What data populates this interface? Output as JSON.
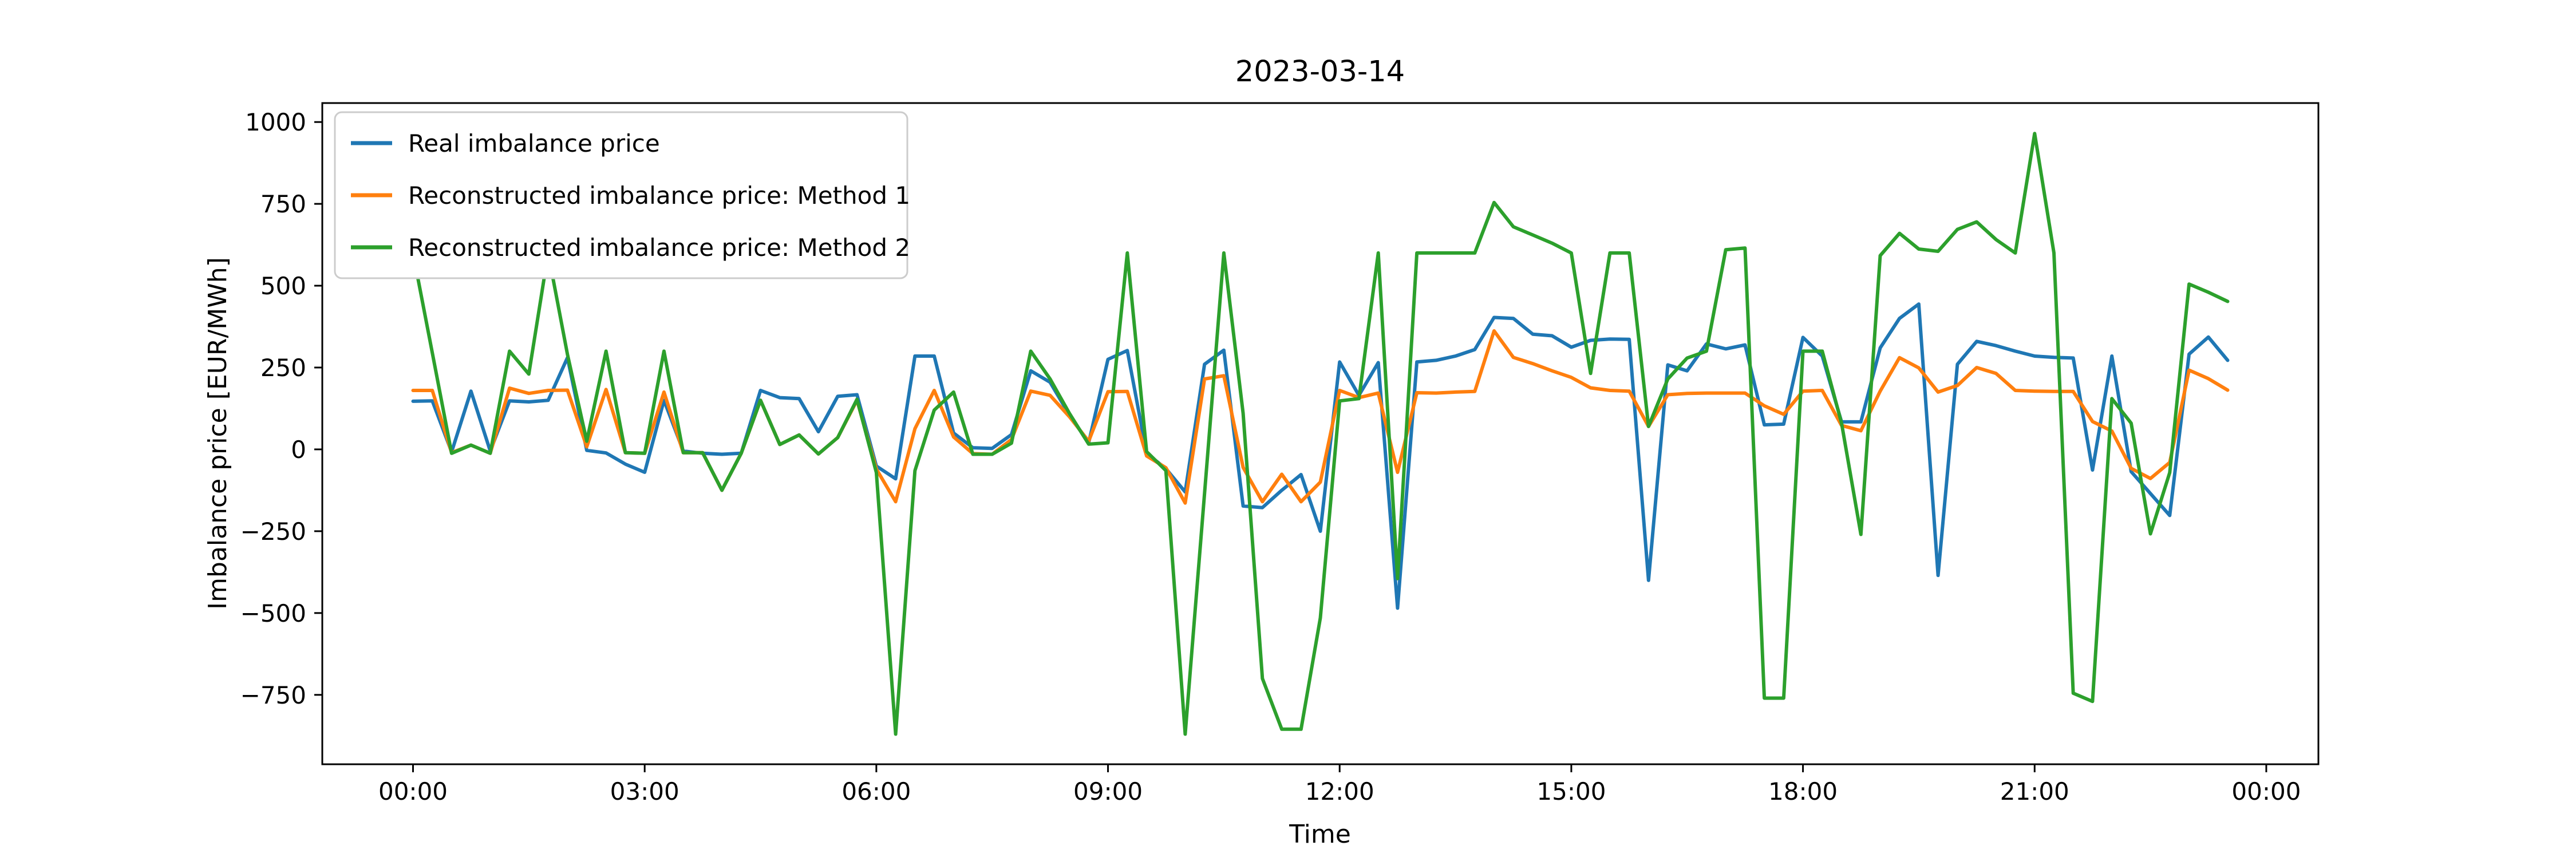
{
  "title": "2023-03-14",
  "xlabel": "Time",
  "ylabel": "Imbalance price [EUR/MWh]",
  "chart_data": {
    "type": "line",
    "x_start": "00:00",
    "x_step_minutes": 15,
    "x_tick_hours": [
      0,
      3,
      6,
      9,
      12,
      15,
      18,
      21,
      24
    ],
    "x_tick_labels": [
      "00:00",
      "03:00",
      "06:00",
      "09:00",
      "12:00",
      "15:00",
      "18:00",
      "21:00",
      "00:00"
    ],
    "y_ticks": [
      1000,
      750,
      500,
      250,
      0,
      -250,
      -500,
      -750
    ],
    "y_tick_labels": [
      "1000",
      "750",
      "500",
      "250",
      "0",
      "−250",
      "−500",
      "−750"
    ],
    "xlim_hours": [
      -1.175,
      24.675
    ],
    "ylim": [
      -962,
      1058
    ],
    "grid": false,
    "legend_position": "upper left",
    "background": "#ffffff",
    "spine_color": "#000000",
    "series": [
      {
        "name": "Real imbalance price",
        "color": "#1f77b4",
        "values": [
          147,
          148,
          -8,
          178,
          -5,
          148,
          145,
          150,
          280,
          -3,
          -11,
          -45,
          -70,
          150,
          -5,
          -12,
          -15,
          -12,
          180,
          158,
          155,
          54,
          162,
          167,
          -51,
          -90,
          285,
          285,
          50,
          5,
          3,
          45,
          240,
          205,
          105,
          20,
          275,
          302,
          -12,
          -59,
          -130,
          260,
          303,
          -173,
          -178,
          -125,
          -77,
          -250,
          267,
          165,
          265,
          -485,
          267,
          272,
          285,
          305,
          403,
          400,
          352,
          347,
          312,
          333,
          337,
          336,
          -400,
          258,
          240,
          322,
          307,
          319,
          75,
          77,
          342,
          285,
          84,
          84,
          310,
          400,
          444,
          -385,
          260,
          330,
          317,
          300,
          285,
          281,
          279,
          -63,
          285,
          -68,
          -135,
          -202,
          291,
          343,
          272
        ]
      },
      {
        "name": "Reconstructed imbalance price: Method 1",
        "color": "#ff7f0e",
        "values": [
          180,
          180,
          -10,
          13,
          -12,
          187,
          171,
          180,
          181,
          8,
          183,
          -10,
          -12,
          175,
          -10,
          -10,
          -125,
          -12,
          150,
          15,
          44,
          -14,
          36,
          150,
          -60,
          -160,
          63,
          180,
          38,
          -13,
          -15,
          30,
          178,
          165,
          100,
          25,
          176,
          177,
          -20,
          -56,
          -164,
          215,
          225,
          -55,
          -160,
          -76,
          -160,
          -100,
          180,
          158,
          172,
          -70,
          173,
          172,
          175,
          177,
          362,
          281,
          262,
          240,
          220,
          188,
          180,
          178,
          70,
          167,
          171,
          172,
          172,
          172,
          133,
          107,
          178,
          180,
          73,
          57,
          178,
          280,
          249,
          175,
          195,
          250,
          232,
          180,
          178,
          177,
          177,
          85,
          56,
          -58,
          -89,
          -40,
          242,
          216,
          181
        ]
      },
      {
        "name": "Reconstructed imbalance price: Method 2",
        "color": "#2ca02c",
        "values": [
          600,
          295,
          -12,
          13,
          -12,
          300,
          230,
          600,
          290,
          25,
          300,
          -10,
          -12,
          300,
          -10,
          -10,
          -125,
          -12,
          150,
          15,
          44,
          -14,
          36,
          153,
          -71,
          -870,
          -65,
          120,
          175,
          -15,
          -15,
          19,
          300,
          215,
          110,
          16,
          20,
          600,
          -7,
          -65,
          -870,
          -135,
          600,
          110,
          -700,
          -855,
          -855,
          -515,
          148,
          155,
          600,
          -395,
          600,
          600,
          600,
          600,
          754,
          680,
          655,
          630,
          600,
          232,
          600,
          600,
          70,
          215,
          279,
          300,
          610,
          615,
          -760,
          -760,
          300,
          300,
          80,
          -260,
          592,
          660,
          612,
          605,
          672,
          695,
          641,
          600,
          965,
          600,
          -745,
          -770,
          155,
          80,
          -258,
          -71,
          505,
          480,
          452
        ]
      }
    ]
  }
}
